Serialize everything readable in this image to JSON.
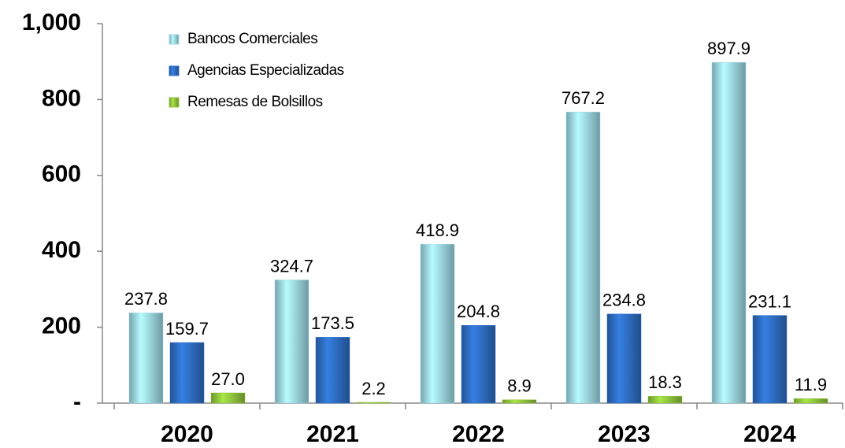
{
  "chart_data": {
    "type": "bar",
    "categories": [
      "2020",
      "2021",
      "2022",
      "2023",
      "2024"
    ],
    "series": [
      {
        "name": "Bancos Comerciales",
        "color": "#9fdbe8",
        "values": [
          237.8,
          324.7,
          418.9,
          767.2,
          897.9
        ],
        "value_labels": [
          "237.8",
          "324.7",
          "418.9",
          "767.2",
          "897.9"
        ]
      },
      {
        "name": "Agencias Especializadas",
        "color": "#2f6fc6",
        "values": [
          159.7,
          173.5,
          204.8,
          234.8,
          231.1
        ],
        "value_labels": [
          "159.7",
          "173.5",
          "204.8",
          "234.8",
          "231.1"
        ]
      },
      {
        "name": "Remesas de Bolsillos",
        "color": "#93c83e",
        "values": [
          27.0,
          2.2,
          8.9,
          18.3,
          11.9
        ],
        "value_labels": [
          "27.0",
          "2.2",
          "8.9",
          "18.3",
          "11.9"
        ]
      }
    ],
    "ylim": [
      0,
      1000
    ],
    "yticks": [
      {
        "value": 0,
        "label": "-"
      },
      200,
      400,
      600,
      800,
      {
        "value": 1000,
        "label": "1,000"
      }
    ],
    "grid": false,
    "legend": "top-left"
  }
}
